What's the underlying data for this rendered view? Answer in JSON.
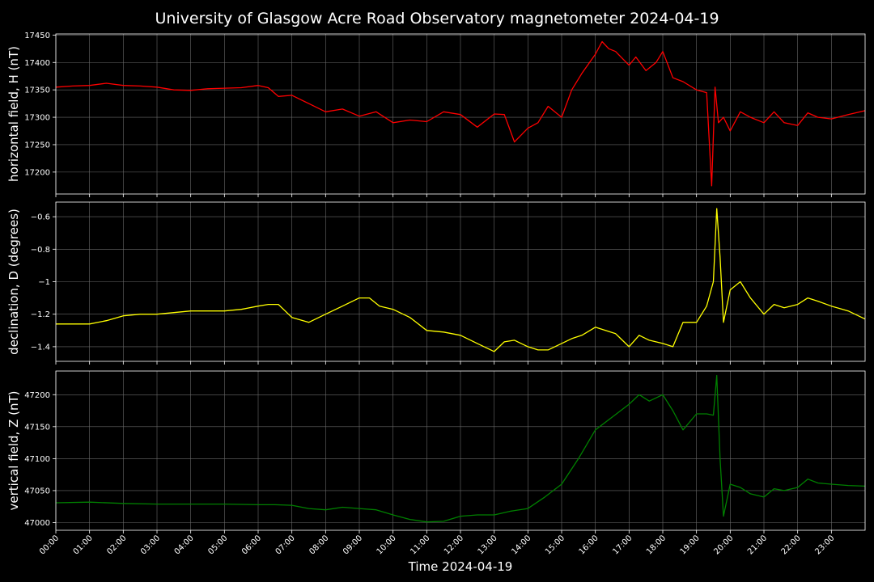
{
  "title": "University of Glasgow Acre Road Observatory magnetometer 2024-04-19",
  "chart_data": {
    "type": "line",
    "title": "University of Glasgow Acre Road Observatory magnetometer 2024-04-19",
    "xlabel": "Time 2024-04-19",
    "x_tick_labels": [
      "00:00",
      "01:00",
      "02:00",
      "03:00",
      "04:00",
      "05:00",
      "06:00",
      "07:00",
      "08:00",
      "09:00",
      "10:00",
      "11:00",
      "12:00",
      "13:00",
      "14:00",
      "15:00",
      "16:00",
      "17:00",
      "18:00",
      "19:00",
      "20:00",
      "21:00",
      "22:00",
      "23:00"
    ],
    "xlim": [
      0,
      24
    ],
    "grid": true,
    "panels": [
      {
        "ylabel": "horizontal field, H (nT)",
        "color": "#ff0000",
        "ylim": [
          17160,
          17452
        ],
        "yticks": [
          17200,
          17250,
          17300,
          17350,
          17400,
          17450
        ],
        "x": [
          0,
          0.5,
          1,
          1.5,
          2,
          2.5,
          3,
          3.5,
          4,
          4.5,
          5,
          5.5,
          6,
          6.3,
          6.6,
          7,
          7.5,
          8,
          8.5,
          9,
          9.5,
          10,
          10.5,
          11,
          11.5,
          12,
          12.5,
          13,
          13.3,
          13.6,
          14,
          14.3,
          14.6,
          15,
          15.3,
          15.6,
          16,
          16.2,
          16.4,
          16.6,
          17,
          17.2,
          17.5,
          17.8,
          18,
          18.3,
          18.6,
          19,
          19.3,
          19.45,
          19.55,
          19.65,
          19.8,
          20,
          20.3,
          20.6,
          21,
          21.3,
          21.6,
          22,
          22.3,
          22.6,
          23,
          23.5,
          24
        ],
        "y": [
          17355,
          17357,
          17358,
          17362,
          17358,
          17357,
          17355,
          17350,
          17349,
          17352,
          17353,
          17354,
          17358,
          17354,
          17338,
          17340,
          17325,
          17310,
          17315,
          17302,
          17310,
          17290,
          17295,
          17292,
          17310,
          17305,
          17282,
          17306,
          17305,
          17255,
          17280,
          17290,
          17320,
          17300,
          17350,
          17380,
          17415,
          17438,
          17425,
          17420,
          17395,
          17410,
          17385,
          17400,
          17420,
          17372,
          17365,
          17350,
          17345,
          17175,
          17355,
          17290,
          17300,
          17275,
          17310,
          17300,
          17290,
          17310,
          17290,
          17285,
          17308,
          17300,
          17297,
          17305,
          17312
        ]
      },
      {
        "ylabel": "declination, D (degrees)",
        "color": "#ffff00",
        "ylim": [
          -1.49,
          -0.51
        ],
        "yticks": [
          -1.4,
          -1.2,
          -1.0,
          -0.8,
          -0.6
        ],
        "x": [
          0,
          0.5,
          1,
          1.5,
          2,
          2.5,
          3,
          3.5,
          4,
          4.5,
          5,
          5.5,
          6,
          6.3,
          6.6,
          7,
          7.5,
          8,
          8.5,
          9,
          9.3,
          9.6,
          10,
          10.5,
          11,
          11.5,
          12,
          12.5,
          13,
          13.3,
          13.6,
          14,
          14.3,
          14.6,
          15,
          15.3,
          15.6,
          16,
          16.3,
          16.6,
          17,
          17.3,
          17.6,
          18,
          18.3,
          18.6,
          19,
          19.3,
          19.5,
          19.6,
          19.7,
          19.8,
          20,
          20.3,
          20.6,
          21,
          21.3,
          21.6,
          22,
          22.3,
          22.6,
          23,
          23.5,
          24
        ],
        "y": [
          -1.26,
          -1.26,
          -1.26,
          -1.24,
          -1.21,
          -1.2,
          -1.2,
          -1.19,
          -1.18,
          -1.18,
          -1.18,
          -1.17,
          -1.15,
          -1.14,
          -1.14,
          -1.22,
          -1.25,
          -1.2,
          -1.15,
          -1.1,
          -1.1,
          -1.15,
          -1.17,
          -1.22,
          -1.3,
          -1.31,
          -1.33,
          -1.38,
          -1.43,
          -1.37,
          -1.36,
          -1.4,
          -1.42,
          -1.42,
          -1.38,
          -1.35,
          -1.33,
          -1.28,
          -1.3,
          -1.32,
          -1.4,
          -1.33,
          -1.36,
          -1.38,
          -1.4,
          -1.25,
          -1.25,
          -1.15,
          -1.0,
          -0.55,
          -0.85,
          -1.25,
          -1.05,
          -1.0,
          -1.1,
          -1.2,
          -1.14,
          -1.16,
          -1.14,
          -1.1,
          -1.12,
          -1.15,
          -1.18,
          -1.23
        ]
      },
      {
        "ylabel": "vertical field, Z (nT)",
        "color": "#008000",
        "ylim": [
          46988,
          47237
        ],
        "yticks": [
          47000,
          47050,
          47100,
          47150,
          47200
        ],
        "x": [
          0,
          1,
          2,
          3,
          4,
          5,
          6,
          6.5,
          7,
          7.5,
          8,
          8.5,
          9,
          9.5,
          10,
          10.5,
          11,
          11.5,
          12,
          12.5,
          13,
          13.5,
          14,
          14.5,
          15,
          15.5,
          16,
          16.5,
          17,
          17.3,
          17.6,
          18,
          18.3,
          18.6,
          19,
          19.3,
          19.5,
          19.6,
          19.7,
          19.8,
          20,
          20.3,
          20.6,
          21,
          21.3,
          21.6,
          22,
          22.3,
          22.6,
          23,
          23.5,
          24
        ],
        "y": [
          47031,
          47032,
          47030,
          47029,
          47029,
          47029,
          47028,
          47028,
          47027,
          47022,
          47020,
          47024,
          47022,
          47020,
          47012,
          47005,
          47001,
          47002,
          47010,
          47012,
          47012,
          47018,
          47022,
          47040,
          47060,
          47100,
          47145,
          47165,
          47185,
          47200,
          47190,
          47200,
          47175,
          47145,
          47170,
          47170,
          47168,
          47230,
          47100,
          47010,
          47060,
          47055,
          47045,
          47040,
          47053,
          47050,
          47055,
          47068,
          47062,
          47060,
          47058,
          47057
        ]
      }
    ]
  }
}
